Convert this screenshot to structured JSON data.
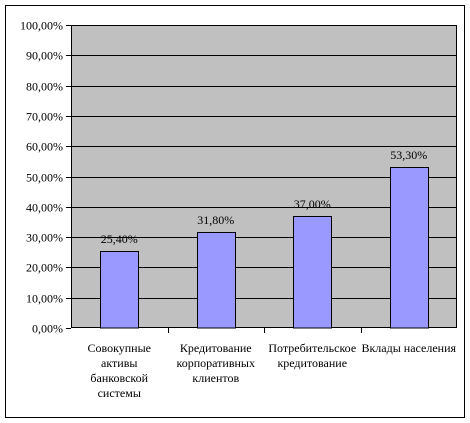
{
  "chart_data": {
    "type": "bar",
    "categories": [
      [
        "Совокупные",
        "активы",
        "банковской",
        "системы"
      ],
      [
        "Кредитование",
        "корпоративных",
        "клиентов"
      ],
      [
        "Потребительское",
        "кредитование"
      ],
      [
        "Вклады населения"
      ]
    ],
    "values": [
      25.4,
      31.8,
      37.0,
      53.3
    ],
    "data_labels": [
      "25,40%",
      "31,80%",
      "37,00%",
      "53,30%"
    ],
    "y_ticks": [
      "0,00%",
      "10,00%",
      "20,00%",
      "30,00%",
      "40,00%",
      "50,00%",
      "60,00%",
      "70,00%",
      "80,00%",
      "90,00%",
      "100,00%"
    ],
    "ylim": [
      0,
      100
    ],
    "grid": true,
    "title": "",
    "xlabel": "",
    "ylabel": "",
    "colors": {
      "plot_bg": "#c0c0c0",
      "bar_fill": "#9999ff",
      "bar_stroke": "#000000",
      "grid": "#000000",
      "frame": "#000000"
    }
  }
}
